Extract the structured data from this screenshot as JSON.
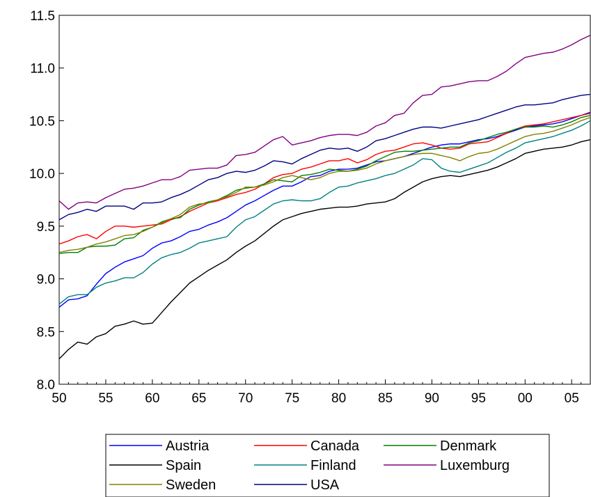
{
  "chart_data": {
    "type": "line",
    "title": "",
    "xlabel": "",
    "ylabel": "",
    "x_tick_labels": [
      "50",
      "55",
      "60",
      "65",
      "70",
      "75",
      "80",
      "85",
      "90",
      "95",
      "00",
      "05"
    ],
    "y_tick_labels": [
      "8.0",
      "8.5",
      "9.0",
      "9.5",
      "10.0",
      "10.5",
      "11.0",
      "11.5"
    ],
    "xlim": [
      1950,
      2007
    ],
    "ylim": [
      8.0,
      11.5
    ],
    "grid": false,
    "legend_position": "bottom",
    "x": [
      1950,
      1951,
      1952,
      1953,
      1954,
      1955,
      1956,
      1957,
      1958,
      1959,
      1960,
      1961,
      1962,
      1963,
      1964,
      1965,
      1966,
      1967,
      1968,
      1969,
      1970,
      1971,
      1972,
      1973,
      1974,
      1975,
      1976,
      1977,
      1978,
      1979,
      1980,
      1981,
      1982,
      1983,
      1984,
      1985,
      1986,
      1987,
      1988,
      1989,
      1990,
      1991,
      1992,
      1993,
      1994,
      1995,
      1996,
      1997,
      1998,
      1999,
      2000,
      2001,
      2002,
      2003,
      2004,
      2005,
      2006,
      2007
    ],
    "series": [
      {
        "name": "Austria",
        "color": "#0000ff",
        "values": [
          8.73,
          8.8,
          8.81,
          8.84,
          8.95,
          9.05,
          9.11,
          9.16,
          9.19,
          9.22,
          9.29,
          9.34,
          9.36,
          9.4,
          9.45,
          9.47,
          9.51,
          9.54,
          9.58,
          9.64,
          9.7,
          9.74,
          9.79,
          9.84,
          9.88,
          9.88,
          9.92,
          9.97,
          9.98,
          10.02,
          10.04,
          10.04,
          10.05,
          10.08,
          10.11,
          10.12,
          10.14,
          10.16,
          10.19,
          10.22,
          10.25,
          10.27,
          10.28,
          10.28,
          10.3,
          10.32,
          10.33,
          10.35,
          10.38,
          10.41,
          10.44,
          10.45,
          10.46,
          10.47,
          10.49,
          10.52,
          10.55,
          10.58
        ]
      },
      {
        "name": "Canada",
        "color": "#ff0000",
        "values": [
          9.33,
          9.36,
          9.4,
          9.42,
          9.38,
          9.45,
          9.5,
          9.5,
          9.49,
          9.5,
          9.51,
          9.52,
          9.56,
          9.59,
          9.64,
          9.68,
          9.72,
          9.74,
          9.77,
          9.8,
          9.82,
          9.85,
          9.9,
          9.96,
          9.99,
          10.0,
          10.04,
          10.06,
          10.09,
          10.12,
          10.12,
          10.14,
          10.1,
          10.13,
          10.18,
          10.21,
          10.22,
          10.25,
          10.28,
          10.29,
          10.27,
          10.24,
          10.23,
          10.24,
          10.28,
          10.29,
          10.3,
          10.34,
          10.38,
          10.42,
          10.45,
          10.46,
          10.47,
          10.49,
          10.51,
          10.53,
          10.55,
          10.57
        ]
      },
      {
        "name": "Denmark",
        "color": "#008000",
        "values": [
          9.24,
          9.25,
          9.25,
          9.3,
          9.31,
          9.31,
          9.32,
          9.38,
          9.39,
          9.46,
          9.49,
          9.54,
          9.57,
          9.58,
          9.66,
          9.7,
          9.73,
          9.75,
          9.79,
          9.84,
          9.86,
          9.87,
          9.9,
          9.94,
          9.93,
          9.92,
          9.98,
          9.99,
          10.01,
          10.04,
          10.03,
          10.02,
          10.04,
          10.07,
          10.12,
          10.16,
          10.2,
          10.21,
          10.21,
          10.22,
          10.23,
          10.24,
          10.25,
          10.25,
          10.29,
          10.31,
          10.34,
          10.37,
          10.39,
          10.42,
          10.44,
          10.44,
          10.45,
          10.44,
          10.46,
          10.49,
          10.53,
          10.55
        ]
      },
      {
        "name": "Spain",
        "color": "#000000",
        "values": [
          8.24,
          8.33,
          8.4,
          8.38,
          8.45,
          8.48,
          8.55,
          8.57,
          8.6,
          8.57,
          8.58,
          8.68,
          8.78,
          8.87,
          8.96,
          9.02,
          9.08,
          9.13,
          9.18,
          9.25,
          9.31,
          9.36,
          9.43,
          9.5,
          9.56,
          9.59,
          9.62,
          9.64,
          9.66,
          9.67,
          9.68,
          9.68,
          9.69,
          9.71,
          9.72,
          9.73,
          9.76,
          9.82,
          9.87,
          9.92,
          9.95,
          9.97,
          9.98,
          9.97,
          9.99,
          10.01,
          10.03,
          10.06,
          10.1,
          10.14,
          10.19,
          10.21,
          10.23,
          10.24,
          10.25,
          10.27,
          10.3,
          10.32
        ]
      },
      {
        "name": "Finland",
        "color": "#008080",
        "values": [
          8.76,
          8.83,
          8.85,
          8.85,
          8.92,
          8.96,
          8.98,
          9.01,
          9.01,
          9.06,
          9.14,
          9.2,
          9.23,
          9.25,
          9.29,
          9.34,
          9.36,
          9.38,
          9.4,
          9.49,
          9.56,
          9.59,
          9.65,
          9.71,
          9.74,
          9.75,
          9.74,
          9.74,
          9.76,
          9.82,
          9.87,
          9.88,
          9.91,
          9.93,
          9.95,
          9.98,
          10.0,
          10.04,
          10.08,
          10.14,
          10.13,
          10.05,
          10.02,
          10.01,
          10.04,
          10.07,
          10.1,
          10.15,
          10.2,
          10.24,
          10.29,
          10.31,
          10.33,
          10.35,
          10.38,
          10.41,
          10.45,
          10.5
        ]
      },
      {
        "name": "Luxemburg",
        "color": "#800080",
        "values": [
          9.74,
          9.66,
          9.72,
          9.73,
          9.72,
          9.77,
          9.81,
          9.85,
          9.86,
          9.88,
          9.91,
          9.94,
          9.94,
          9.97,
          10.03,
          10.04,
          10.05,
          10.05,
          10.08,
          10.17,
          10.18,
          10.2,
          10.26,
          10.32,
          10.35,
          10.27,
          10.29,
          10.31,
          10.34,
          10.36,
          10.37,
          10.37,
          10.36,
          10.39,
          10.45,
          10.48,
          10.55,
          10.57,
          10.67,
          10.74,
          10.75,
          10.82,
          10.83,
          10.85,
          10.87,
          10.88,
          10.88,
          10.92,
          10.97,
          11.04,
          11.1,
          11.12,
          11.14,
          11.15,
          11.18,
          11.22,
          11.27,
          11.31
        ]
      },
      {
        "name": "Sweden",
        "color": "#808000",
        "values": [
          9.25,
          9.27,
          9.28,
          9.3,
          9.33,
          9.35,
          9.38,
          9.41,
          9.42,
          9.45,
          9.49,
          9.53,
          9.57,
          9.61,
          9.68,
          9.71,
          9.72,
          9.75,
          9.78,
          9.82,
          9.87,
          9.87,
          9.89,
          9.92,
          9.96,
          9.98,
          9.96,
          9.94,
          9.96,
          10.0,
          10.02,
          10.02,
          10.03,
          10.05,
          10.09,
          10.12,
          10.14,
          10.16,
          10.18,
          10.19,
          10.19,
          10.17,
          10.15,
          10.12,
          10.16,
          10.19,
          10.2,
          10.23,
          10.27,
          10.31,
          10.35,
          10.37,
          10.38,
          10.4,
          10.43,
          10.46,
          10.5,
          10.53
        ]
      },
      {
        "name": "USA",
        "color": "#000080",
        "values": [
          9.56,
          9.61,
          9.63,
          9.66,
          9.64,
          9.69,
          9.69,
          9.69,
          9.66,
          9.72,
          9.72,
          9.73,
          9.77,
          9.8,
          9.84,
          9.89,
          9.94,
          9.96,
          10.0,
          10.02,
          10.01,
          10.03,
          10.07,
          10.12,
          10.11,
          10.09,
          10.14,
          10.18,
          10.22,
          10.24,
          10.23,
          10.24,
          10.21,
          10.25,
          10.31,
          10.33,
          10.36,
          10.39,
          10.42,
          10.44,
          10.44,
          10.43,
          10.45,
          10.47,
          10.49,
          10.51,
          10.54,
          10.57,
          10.6,
          10.63,
          10.65,
          10.65,
          10.66,
          10.67,
          10.7,
          10.72,
          10.74,
          10.75
        ]
      }
    ]
  }
}
